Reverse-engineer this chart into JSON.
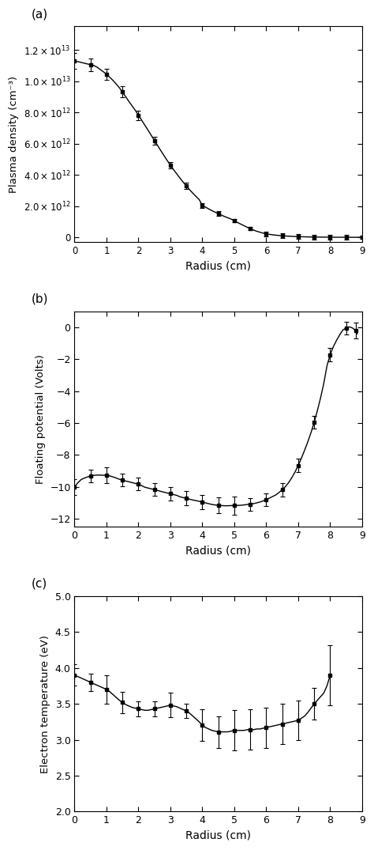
{
  "panel_a": {
    "label": "(a)",
    "ylabel": "Plasma density (cm⁻³)",
    "xlabel": "Radius (cm)",
    "xlim": [
      0,
      9
    ],
    "ylim": [
      -300000000000.0,
      13500000000000.0
    ],
    "yticks": [
      0,
      2000000000000.0,
      4000000000000.0,
      6000000000000.0,
      8000000000000.0,
      10000000000000.0,
      12000000000000.0
    ],
    "x": [
      0.0,
      0.1,
      0.2,
      0.3,
      0.4,
      0.5,
      0.6,
      0.7,
      0.8,
      0.9,
      1.0,
      1.1,
      1.2,
      1.3,
      1.4,
      1.5,
      1.6,
      1.7,
      1.8,
      1.9,
      2.0,
      2.1,
      2.2,
      2.3,
      2.4,
      2.5,
      2.6,
      2.7,
      2.8,
      2.9,
      3.0,
      3.1,
      3.2,
      3.3,
      3.4,
      3.5,
      3.6,
      3.7,
      3.8,
      3.9,
      4.0,
      4.1,
      4.2,
      4.3,
      4.4,
      4.5,
      4.6,
      4.7,
      4.8,
      4.9,
      5.0,
      5.1,
      5.2,
      5.3,
      5.4,
      5.5,
      5.6,
      5.7,
      5.8,
      5.9,
      6.0,
      6.25,
      6.5,
      6.75,
      7.0,
      7.25,
      7.5,
      7.75,
      8.0,
      8.25,
      8.5,
      8.75,
      9.0
    ],
    "y": [
      11300000000000.0,
      11250000000000.0,
      11200000000000.0,
      11150000000000.0,
      11100000000000.0,
      11050000000000.0,
      11000000000000.0,
      10900000000000.0,
      10750000000000.0,
      10600000000000.0,
      10450000000000.0,
      10250000000000.0,
      10050000000000.0,
      9820000000000.0,
      9580000000000.0,
      9300000000000.0,
      9000000000000.0,
      8700000000000.0,
      8420000000000.0,
      8130000000000.0,
      7820000000000.0,
      7500000000000.0,
      7180000000000.0,
      6860000000000.0,
      6530000000000.0,
      6200000000000.0,
      5880000000000.0,
      5550000000000.0,
      5230000000000.0,
      4920000000000.0,
      4620000000000.0,
      4330000000000.0,
      4060000000000.0,
      3790000000000.0,
      3530000000000.0,
      3280000000000.0,
      3050000000000.0,
      2830000000000.0,
      2620000000000.0,
      2420000000000.0,
      2050000000000.0,
      1930000000000.0,
      1820000000000.0,
      1710000000000.0,
      1610000000000.0,
      1510000000000.0,
      1420000000000.0,
      1330000000000.0,
      1250000000000.0,
      1170000000000.0,
      1050000000000.0,
      950000000000.0,
      850000000000.0,
      750000000000.0,
      650000000000.0,
      550000000000.0,
      470000000000.0,
      390000000000.0,
      330000000000.0,
      270000000000.0,
      220000000000.0,
      150000000000.0,
      100000000000.0,
      70000000000.0,
      45000000000.0,
      30000000000.0,
      20000000000.0,
      15000000000.0,
      10000000000.0,
      7000000000.0,
      5000000000.0,
      3000000000.0,
      2000000000.0
    ],
    "yerr_x": [
      0.0,
      0.5,
      1.0,
      1.5,
      2.0,
      2.5,
      3.0,
      3.5,
      4.0,
      4.5,
      5.0,
      5.5,
      6.0,
      6.5,
      7.0,
      7.5,
      8.0,
      8.5,
      9.0
    ],
    "yerr": [
      500000000000.0,
      400000000000.0,
      350000000000.0,
      350000000000.0,
      300000000000.0,
      250000000000.0,
      200000000000.0,
      200000000000.0,
      150000000000.0,
      150000000000.0,
      100000000000.0,
      100000000000.0,
      150000000000.0,
      150000000000.0,
      150000000000.0,
      150000000000.0,
      150000000000.0,
      150000000000.0,
      100000000000.0
    ]
  },
  "panel_b": {
    "label": "(b)",
    "ylabel": "Floating potential (Volts)",
    "xlabel": "Radius (cm)",
    "xlim": [
      0,
      9
    ],
    "ylim": [
      -12.5,
      1.0
    ],
    "yticks": [
      -12,
      -10,
      -8,
      -6,
      -4,
      -2,
      0
    ],
    "x": [
      0.0,
      0.1,
      0.2,
      0.3,
      0.4,
      0.5,
      0.6,
      0.7,
      0.8,
      0.9,
      1.0,
      1.1,
      1.2,
      1.3,
      1.4,
      1.5,
      1.6,
      1.7,
      1.8,
      1.9,
      2.0,
      2.1,
      2.2,
      2.3,
      2.4,
      2.5,
      2.6,
      2.7,
      2.8,
      2.9,
      3.0,
      3.1,
      3.2,
      3.3,
      3.4,
      3.5,
      3.6,
      3.7,
      3.8,
      3.9,
      4.0,
      4.1,
      4.2,
      4.3,
      4.4,
      4.5,
      4.6,
      4.7,
      4.8,
      4.9,
      5.0,
      5.1,
      5.2,
      5.3,
      5.4,
      5.5,
      5.6,
      5.7,
      5.8,
      5.9,
      6.0,
      6.1,
      6.2,
      6.3,
      6.4,
      6.5,
      6.6,
      6.7,
      6.8,
      6.9,
      7.0,
      7.1,
      7.2,
      7.3,
      7.4,
      7.5,
      7.6,
      7.7,
      7.8,
      7.9,
      8.0,
      8.1,
      8.2,
      8.3,
      8.4,
      8.5,
      8.6,
      8.7,
      8.8,
      8.85
    ],
    "y": [
      -10.0,
      -9.75,
      -9.55,
      -9.45,
      -9.38,
      -9.32,
      -9.28,
      -9.26,
      -9.26,
      -9.27,
      -9.28,
      -9.31,
      -9.37,
      -9.44,
      -9.52,
      -9.58,
      -9.63,
      -9.68,
      -9.73,
      -9.78,
      -9.83,
      -9.92,
      -10.02,
      -10.07,
      -10.12,
      -10.17,
      -10.22,
      -10.28,
      -10.33,
      -10.38,
      -10.43,
      -10.48,
      -10.53,
      -10.62,
      -10.67,
      -10.72,
      -10.77,
      -10.82,
      -10.86,
      -10.9,
      -10.95,
      -11.0,
      -11.05,
      -11.1,
      -11.13,
      -11.15,
      -11.17,
      -11.18,
      -11.18,
      -11.17,
      -11.17,
      -11.16,
      -11.15,
      -11.13,
      -11.1,
      -11.08,
      -11.05,
      -11.0,
      -10.95,
      -10.88,
      -10.8,
      -10.7,
      -10.6,
      -10.5,
      -10.35,
      -10.18,
      -9.98,
      -9.73,
      -9.42,
      -9.07,
      -8.65,
      -8.2,
      -7.7,
      -7.18,
      -6.6,
      -5.95,
      -5.22,
      -4.42,
      -3.52,
      -2.42,
      -1.72,
      -1.22,
      -0.82,
      -0.47,
      -0.17,
      -0.05,
      0.02,
      -0.05,
      -0.22,
      -0.42
    ],
    "yerr_x": [
      0.0,
      0.5,
      1.0,
      1.5,
      2.0,
      2.5,
      3.0,
      3.5,
      4.0,
      4.5,
      5.0,
      5.5,
      6.0,
      6.5,
      7.0,
      7.5,
      8.0,
      8.5,
      8.8
    ],
    "yerr": [
      0.5,
      0.4,
      0.5,
      0.4,
      0.4,
      0.4,
      0.4,
      0.45,
      0.45,
      0.5,
      0.55,
      0.4,
      0.4,
      0.4,
      0.4,
      0.4,
      0.4,
      0.4,
      0.5
    ]
  },
  "panel_c": {
    "label": "(c)",
    "ylabel": "Electron temperature (eV)",
    "xlabel": "Radius (cm)",
    "xlim": [
      0,
      9
    ],
    "ylim": [
      2.0,
      5.0
    ],
    "yticks": [
      2.0,
      2.5,
      3.0,
      3.5,
      4.0,
      4.5,
      5.0
    ],
    "x": [
      0.0,
      0.1,
      0.2,
      0.3,
      0.4,
      0.5,
      0.6,
      0.7,
      0.8,
      0.9,
      1.0,
      1.1,
      1.2,
      1.3,
      1.4,
      1.5,
      1.6,
      1.7,
      1.8,
      1.9,
      2.0,
      2.1,
      2.2,
      2.3,
      2.4,
      2.5,
      2.6,
      2.7,
      2.8,
      2.9,
      3.0,
      3.1,
      3.2,
      3.3,
      3.4,
      3.5,
      3.6,
      3.7,
      3.8,
      3.9,
      4.0,
      4.1,
      4.2,
      4.3,
      4.4,
      4.5,
      4.6,
      4.7,
      4.8,
      4.9,
      5.0,
      5.1,
      5.2,
      5.3,
      5.4,
      5.5,
      5.6,
      5.7,
      5.8,
      5.9,
      6.0,
      6.1,
      6.2,
      6.3,
      6.4,
      6.5,
      6.6,
      6.7,
      6.8,
      6.9,
      7.0,
      7.1,
      7.2,
      7.3,
      7.4,
      7.5,
      7.6,
      7.7,
      7.8,
      7.9,
      8.0
    ],
    "y": [
      3.9,
      3.88,
      3.86,
      3.84,
      3.82,
      3.8,
      3.78,
      3.76,
      3.74,
      3.72,
      3.7,
      3.67,
      3.63,
      3.59,
      3.55,
      3.52,
      3.49,
      3.47,
      3.45,
      3.44,
      3.43,
      3.42,
      3.41,
      3.41,
      3.42,
      3.43,
      3.44,
      3.45,
      3.46,
      3.47,
      3.48,
      3.47,
      3.46,
      3.44,
      3.42,
      3.4,
      3.37,
      3.33,
      3.29,
      3.25,
      3.2,
      3.17,
      3.15,
      3.13,
      3.12,
      3.11,
      3.11,
      3.11,
      3.11,
      3.12,
      3.13,
      3.13,
      3.13,
      3.13,
      3.14,
      3.14,
      3.14,
      3.15,
      3.15,
      3.16,
      3.17,
      3.18,
      3.19,
      3.2,
      3.21,
      3.22,
      3.23,
      3.24,
      3.25,
      3.26,
      3.27,
      3.3,
      3.33,
      3.38,
      3.44,
      3.5,
      3.55,
      3.6,
      3.65,
      3.75,
      3.9
    ],
    "yerr_x": [
      0.0,
      0.5,
      1.0,
      1.5,
      2.0,
      2.5,
      3.0,
      3.5,
      4.0,
      4.5,
      5.0,
      5.5,
      6.0,
      6.5,
      7.0,
      7.5,
      8.0
    ],
    "yerr": [
      0.15,
      0.12,
      0.2,
      0.15,
      0.1,
      0.1,
      0.17,
      0.1,
      0.22,
      0.22,
      0.28,
      0.28,
      0.28,
      0.28,
      0.28,
      0.22,
      0.42
    ]
  }
}
